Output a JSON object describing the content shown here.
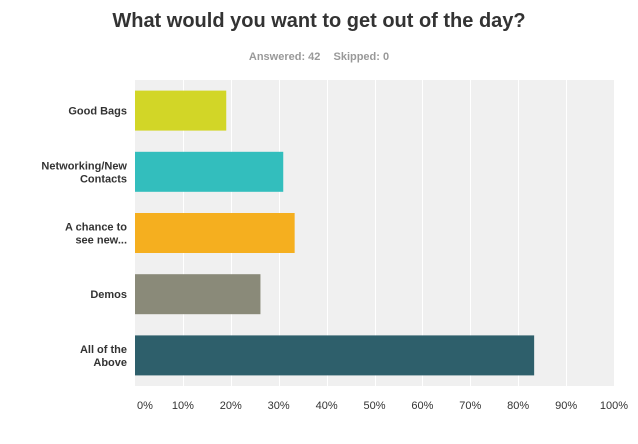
{
  "question": {
    "title": "What would you want to get out of the day?",
    "answered": "Answered: 42",
    "skipped": "Skipped: 0"
  },
  "chart_data": {
    "type": "bar",
    "orientation": "horizontal",
    "categories": [
      [
        "Good Bags"
      ],
      [
        "Networking/New",
        "Contacts"
      ],
      [
        "A chance to",
        "see new..."
      ],
      [
        "Demos"
      ],
      [
        "All of the",
        "Above"
      ]
    ],
    "values": [
      19.05,
      30.95,
      33.33,
      26.19,
      83.33
    ],
    "colors": [
      "#d2d627",
      "#33bebd",
      "#f5af1f",
      "#8a8a79",
      "#2e5f6b"
    ],
    "xlim": [
      0,
      100
    ],
    "xticks": [
      0,
      10,
      20,
      30,
      40,
      50,
      60,
      70,
      80,
      90,
      100
    ],
    "tick_format": "%",
    "grid": true,
    "plot_background": "#f0f0f0"
  }
}
